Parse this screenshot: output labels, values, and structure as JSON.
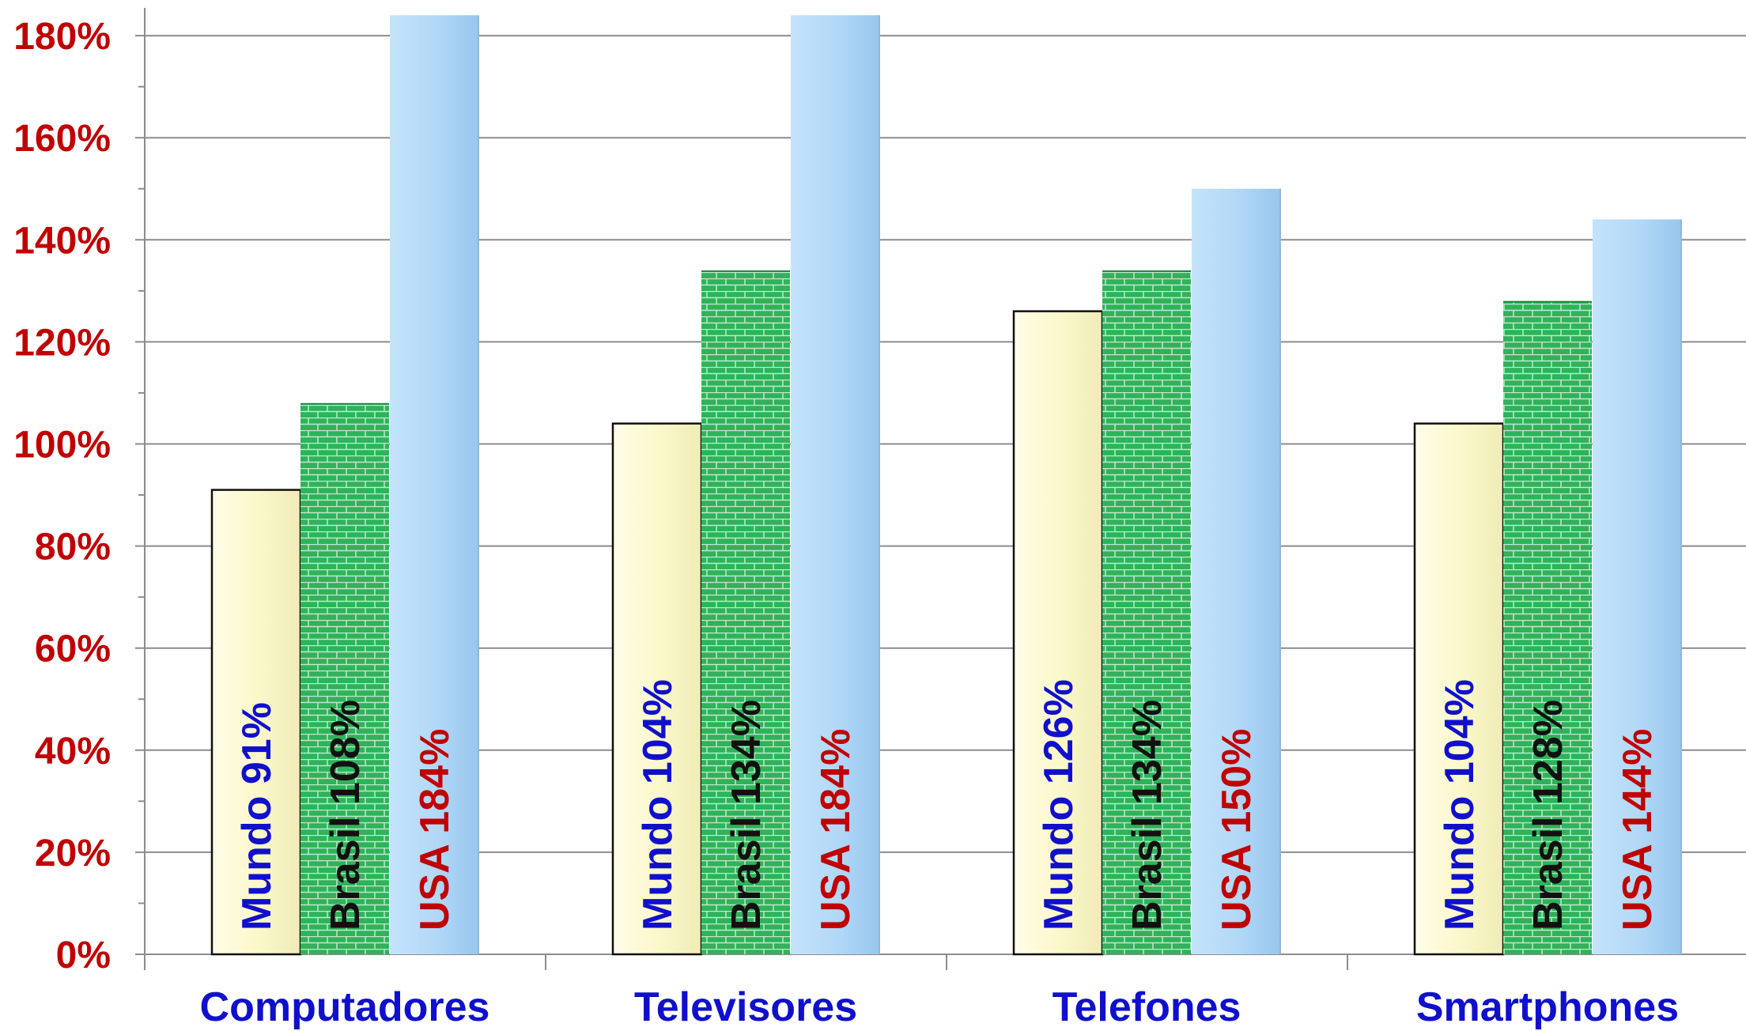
{
  "chart_data": {
    "type": "bar",
    "categories": [
      "Computadores",
      "Televisores",
      "Telefones",
      "Smartphones"
    ],
    "series": [
      {
        "name": "Mundo",
        "values": [
          91,
          104,
          126,
          104
        ],
        "label_color": "#1010cc",
        "fill": "#fcfad6"
      },
      {
        "name": "Brasil",
        "values": [
          108,
          134,
          134,
          128
        ],
        "label_color": "#111111",
        "fill": "#2fb35a"
      },
      {
        "name": "USA",
        "values": [
          184,
          184,
          150,
          144
        ],
        "label_color": "#c00000",
        "fill": "#b3d9f7"
      }
    ],
    "data_labels": [
      [
        "Mundo",
        "91%",
        "Brasil",
        "108%",
        "USA",
        "184%"
      ],
      [
        "Mundo",
        "104%",
        "Brasil",
        "134%",
        "USA",
        "184%"
      ],
      [
        "Mundo",
        "126%",
        "Brasil",
        "134%",
        "USA",
        "150%"
      ],
      [
        "Mundo",
        "104%",
        "Brasil",
        "128%",
        "USA",
        "144%"
      ]
    ],
    "y_ticks": [
      "0%",
      "20%",
      "40%",
      "60%",
      "80%",
      "100%",
      "120%",
      "140%",
      "160%",
      "180%"
    ],
    "ylim": [
      0,
      184
    ],
    "grid": true,
    "title": "",
    "xlabel": "",
    "ylabel": "",
    "colors": {
      "ytick": "#c00000",
      "xcat": "#1010cc",
      "grid": "#8c8c8c",
      "axis": "#8c8c8c"
    }
  }
}
